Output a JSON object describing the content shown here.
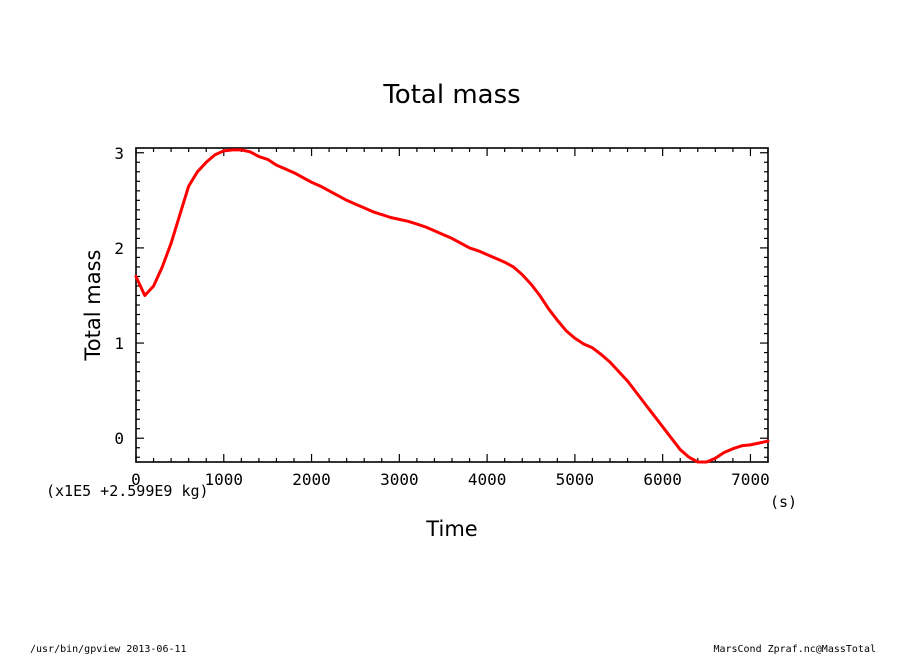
{
  "chart_data": {
    "type": "line",
    "title": "Total mass",
    "xlabel": "Time",
    "ylabel": "Total mass",
    "x_unit": "(s)",
    "y_unit": "(x1E5 +2.599E9 kg)",
    "xlim": [
      0,
      7200
    ],
    "ylim": [
      -0.25,
      3.05
    ],
    "x_major_ticks": [
      0,
      1000,
      2000,
      3000,
      4000,
      5000,
      6000,
      7000
    ],
    "x_tick_labels": [
      "0",
      "1000",
      "2000",
      "3000",
      "4000",
      "5000",
      "6000",
      "7000"
    ],
    "y_major_ticks": [
      0,
      1,
      2,
      3
    ],
    "y_tick_labels": [
      "0",
      "1",
      "2",
      "3"
    ],
    "grid": false,
    "series": [
      {
        "color": "#ff0000",
        "x": [
          0,
          100,
          200,
          300,
          400,
          500,
          600,
          700,
          800,
          900,
          1000,
          1100,
          1200,
          1300,
          1400,
          1500,
          1600,
          1700,
          1800,
          1900,
          2000,
          2100,
          2200,
          2300,
          2400,
          2500,
          2600,
          2700,
          2800,
          2900,
          3000,
          3100,
          3200,
          3300,
          3400,
          3500,
          3600,
          3700,
          3800,
          3900,
          4000,
          4100,
          4200,
          4300,
          4400,
          4500,
          4600,
          4700,
          4800,
          4900,
          5000,
          5100,
          5200,
          5300,
          5400,
          5500,
          5600,
          5700,
          5800,
          5900,
          6000,
          6100,
          6200,
          6300,
          6400,
          6500,
          6600,
          6700,
          6800,
          6900,
          7000,
          7100,
          7200
        ],
        "y": [
          1.7,
          1.5,
          1.6,
          1.8,
          2.05,
          2.35,
          2.65,
          2.8,
          2.9,
          2.98,
          3.02,
          3.03,
          3.03,
          3.01,
          2.96,
          2.93,
          2.87,
          2.83,
          2.79,
          2.74,
          2.69,
          2.65,
          2.6,
          2.55,
          2.5,
          2.46,
          2.42,
          2.38,
          2.35,
          2.32,
          2.3,
          2.28,
          2.25,
          2.22,
          2.18,
          2.14,
          2.1,
          2.05,
          2.0,
          1.97,
          1.93,
          1.89,
          1.85,
          1.8,
          1.72,
          1.62,
          1.5,
          1.36,
          1.24,
          1.13,
          1.05,
          0.99,
          0.95,
          0.88,
          0.8,
          0.7,
          0.6,
          0.48,
          0.36,
          0.24,
          0.12,
          0.0,
          -0.12,
          -0.2,
          -0.25,
          -0.25,
          -0.21,
          -0.15,
          -0.11,
          -0.08,
          -0.07,
          -0.05,
          -0.03
        ]
      }
    ]
  },
  "footer": {
    "left": "/usr/bin/gpview  2013-06-11",
    "right": "MarsCond_Zpraf.nc@MassTotal"
  }
}
